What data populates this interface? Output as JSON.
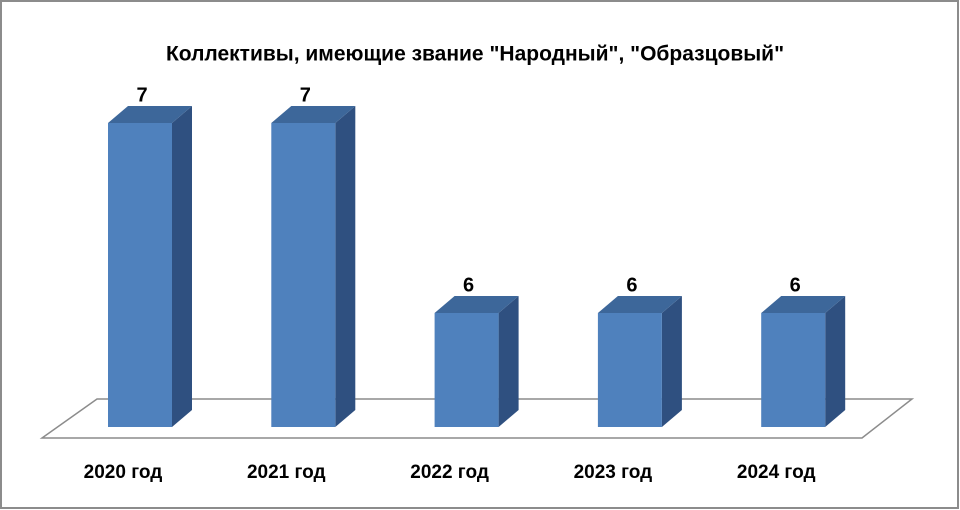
{
  "chart_data": {
    "type": "bar3d",
    "title": "Коллективы, имеющие звание \"Народный\", \"Образцовый\"",
    "categories": [
      "2020 год",
      "2021 год",
      "2022 год",
      "2023 год",
      "2024 год"
    ],
    "values": [
      7,
      7,
      6,
      6,
      6
    ],
    "color": "#4f81bd",
    "ylim": [
      5.4,
      7.2
    ]
  }
}
